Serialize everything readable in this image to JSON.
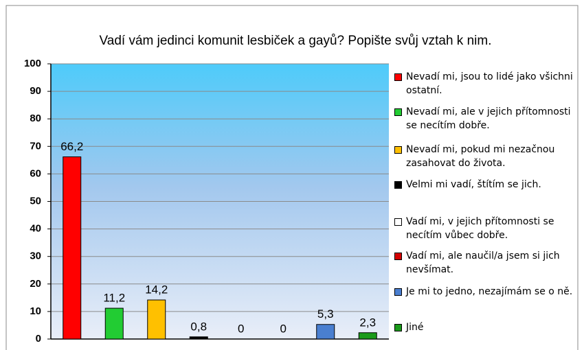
{
  "chart_data": {
    "type": "bar",
    "title": "Vadí vám jedinci komunit lesbiček a gayů? Popište svůj vztah k nim.",
    "series": [
      {
        "name": "Nevadí mi, jsou to lidé jako všichni ostatní.",
        "color": "#ff0000",
        "values": [
          66.2
        ],
        "value_labels": [
          "66,2"
        ]
      },
      {
        "name": "Nevadí mi, ale v jejich přítomnosti se necítím dobře.",
        "color": "#22cc33",
        "values": [
          11.2
        ],
        "value_labels": [
          "11,2"
        ]
      },
      {
        "name": "Nevadí mi, pokud mi nezačnou zasahovat do života.",
        "color": "#ffc000",
        "values": [
          14.2
        ],
        "value_labels": [
          "14,2"
        ]
      },
      {
        "name": "Velmi mi vadí, štítím se jich.",
        "color": "#000000",
        "values": [
          0.8
        ],
        "value_labels": [
          "0,8"
        ]
      },
      {
        "name": "Vadí mi, v jejich přítomnosti se necítím vůbec dobře.",
        "color": "#ffffff",
        "values": [
          0
        ]
      },
      {
        "name": "Vadí mi, ale naučil/a jsem si jich nevšímat.",
        "color": "#d40000",
        "values": [
          0
        ]
      },
      {
        "name": "Je mi to jedno, nezajímám se o ně.",
        "color": "#4a7fd0",
        "values": [
          5.3
        ],
        "value_labels": [
          "5,3"
        ]
      },
      {
        "name": "Jiné",
        "color": "#1a9a1a",
        "values": [
          2.3
        ],
        "value_labels": [
          "2,3"
        ]
      }
    ],
    "ylim": [
      0,
      100
    ],
    "yticks": [
      0,
      10,
      20,
      30,
      40,
      50,
      60,
      70,
      80,
      90,
      100
    ],
    "grid": true,
    "legend": "right"
  }
}
